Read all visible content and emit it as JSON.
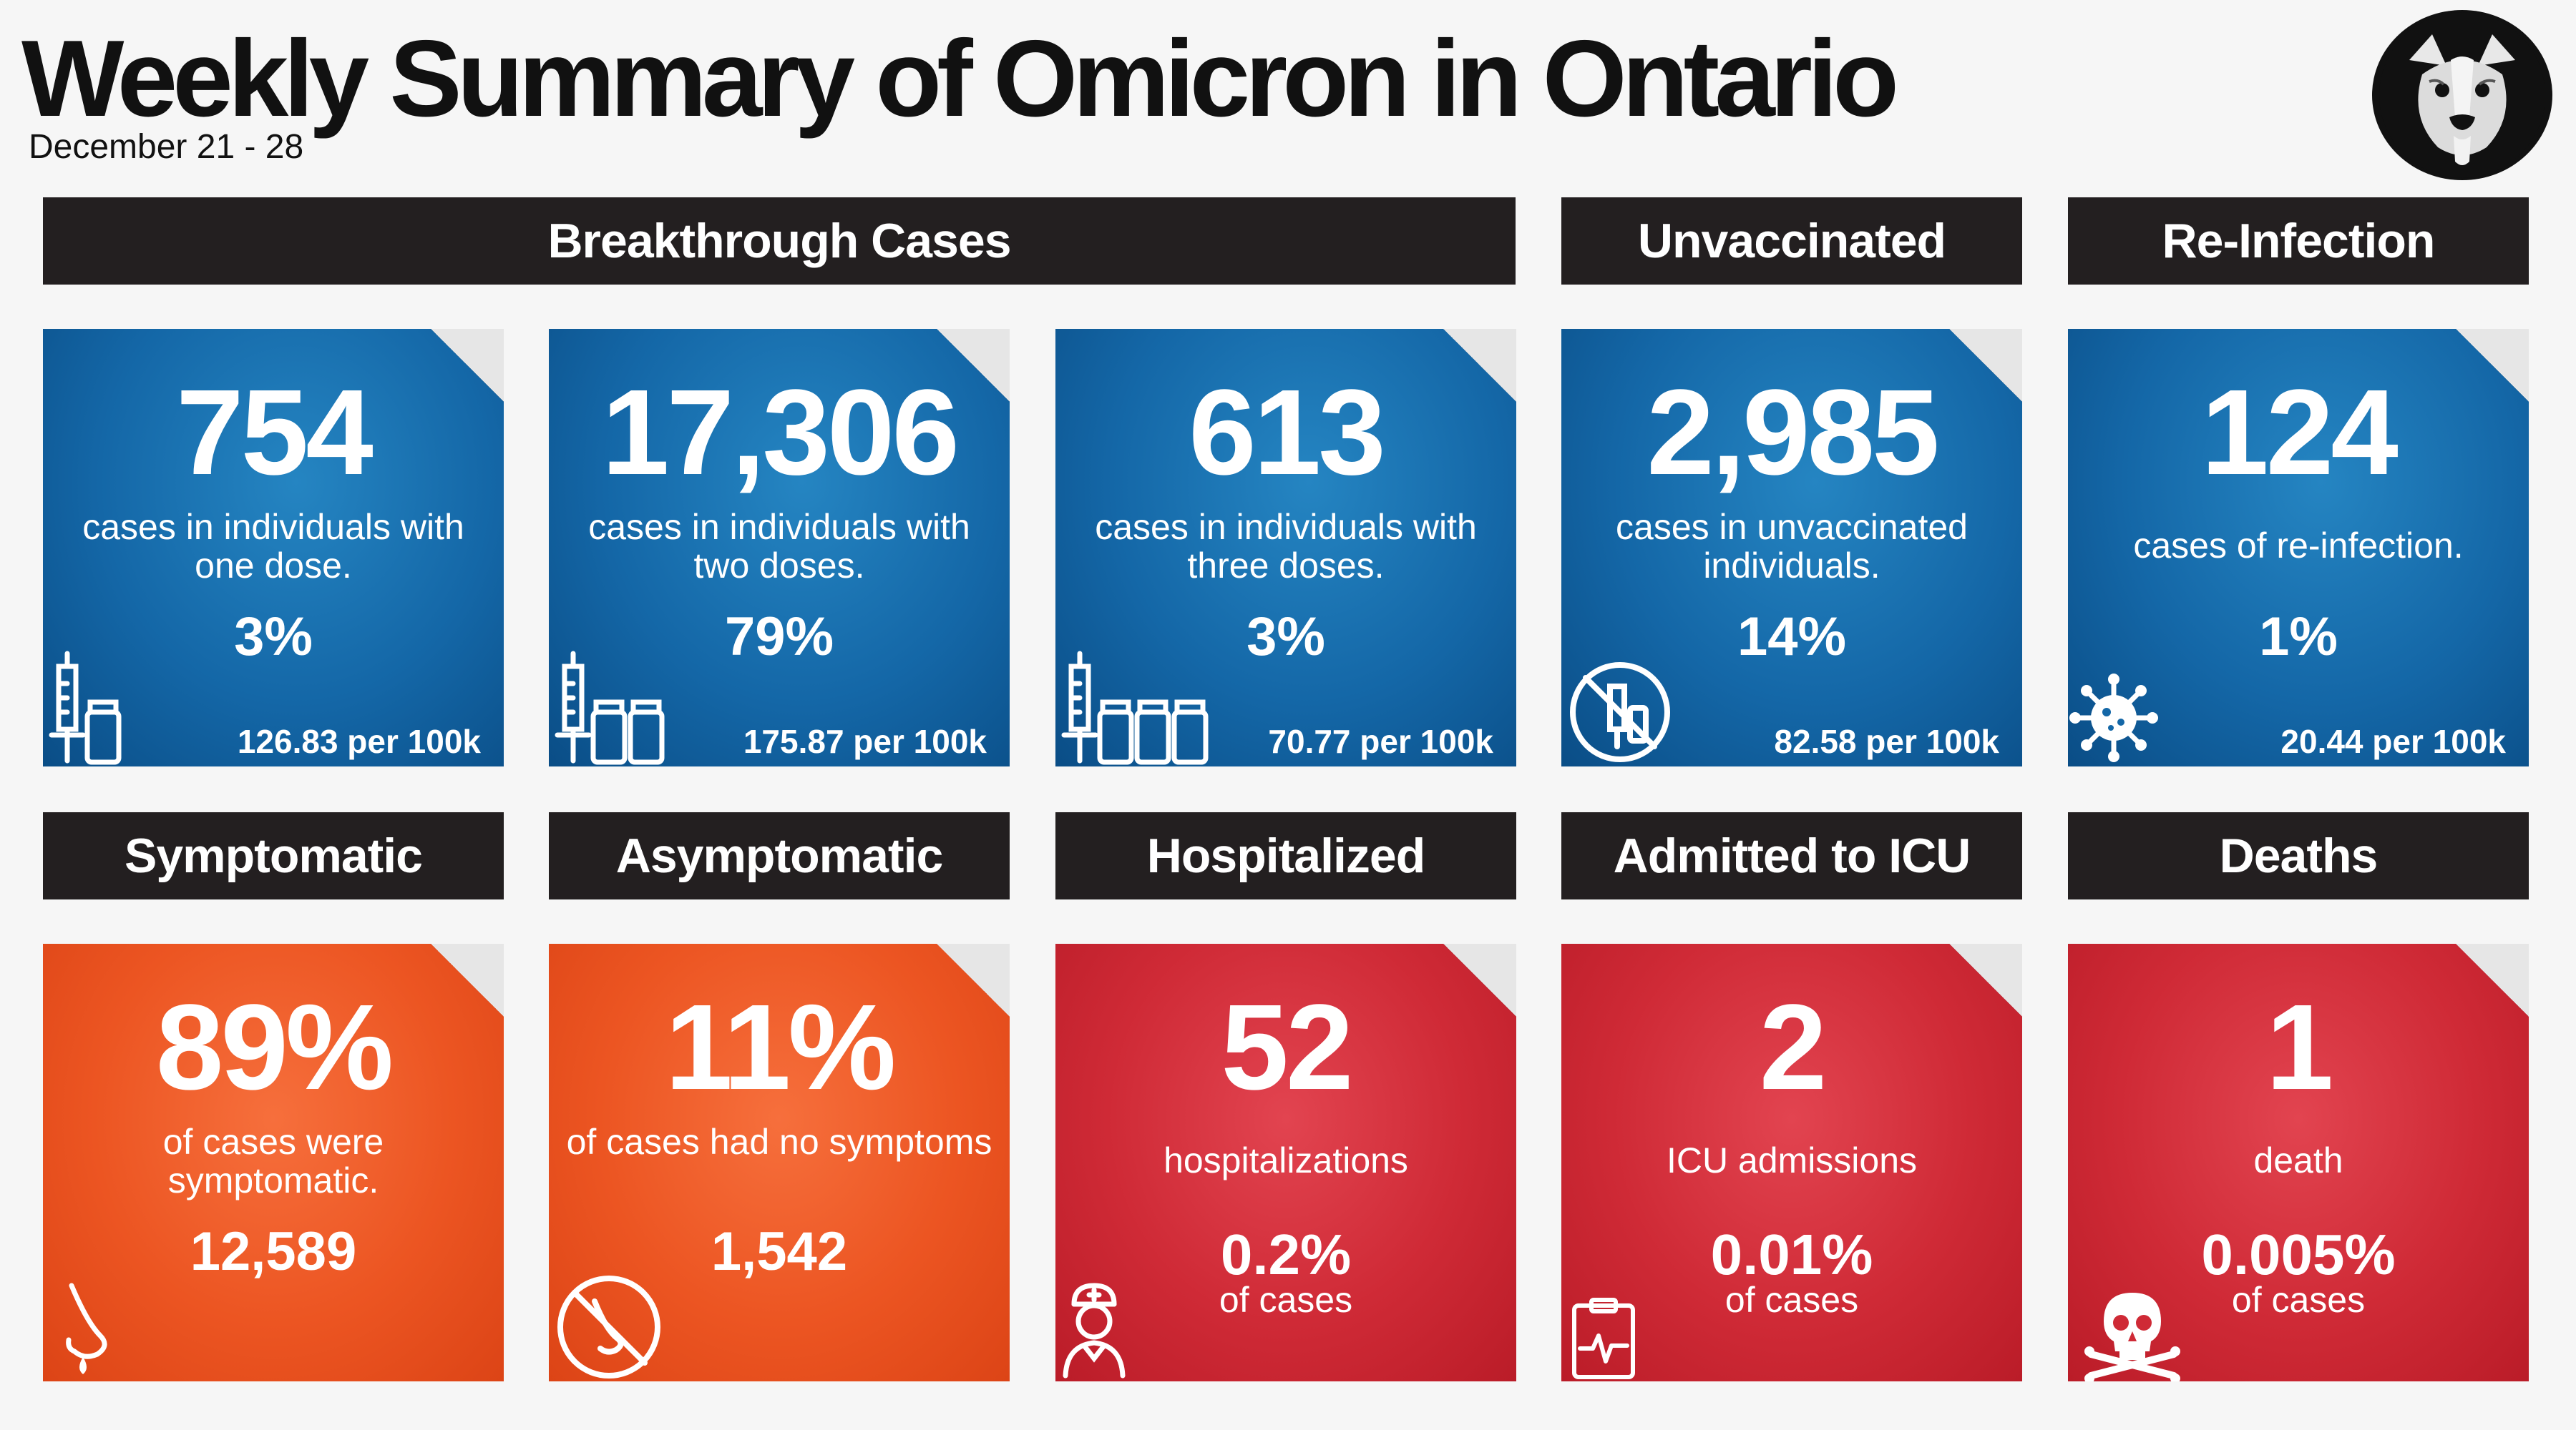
{
  "title": "Weekly Summary of Omicron in Ontario",
  "subtitle": "December 21 - 28",
  "headers": {
    "breakthrough": "Breakthrough Cases",
    "unvaccinated": "Unvaccinated",
    "reinfection": "Re-Infection",
    "symptomatic": "Symptomatic",
    "asymptomatic": "Asymptomatic",
    "hospitalized": "Hospitalized",
    "icu": "Admitted to ICU",
    "deaths": "Deaths"
  },
  "tiles": {
    "one_dose": {
      "value": "754",
      "desc": "cases in individuals with one dose.",
      "percent": "3%",
      "rate": "126.83 per 100k",
      "icon": "vaccine-one-dose-icon"
    },
    "two_doses": {
      "value": "17,306",
      "desc": "cases in individuals with two doses.",
      "percent": "79%",
      "rate": "175.87 per 100k",
      "icon": "vaccine-two-doses-icon"
    },
    "three_doses": {
      "value": "613",
      "desc": "cases in individuals with three doses.",
      "percent": "3%",
      "rate": "70.77 per 100k",
      "icon": "vaccine-three-doses-icon"
    },
    "unvaccinated": {
      "value": "2,985",
      "desc": "cases in unvaccinated individuals.",
      "percent": "14%",
      "rate": "82.58 per 100k",
      "icon": "no-vaccine-icon"
    },
    "reinfection": {
      "value": "124",
      "desc": "cases of re-infection.",
      "percent": "1%",
      "rate": "20.44 per 100k",
      "icon": "virus-icon"
    },
    "symptomatic": {
      "value": "89%",
      "desc": "of cases were symptomatic.",
      "count": "12,589",
      "icon": "runny-nose-icon"
    },
    "asymptomatic": {
      "value": "11%",
      "desc": "of cases had no symptoms",
      "count": "1,542",
      "icon": "no-symptoms-icon"
    },
    "hospitalized": {
      "value": "52",
      "desc": "hospitalizations",
      "percent": "0.2%",
      "suffix": "of cases",
      "icon": "nurse-icon"
    },
    "icu": {
      "value": "2",
      "desc": "ICU admissions",
      "percent": "0.01%",
      "suffix": "of cases",
      "icon": "medical-chart-icon"
    },
    "deaths": {
      "value": "1",
      "desc": "death",
      "percent": "0.005%",
      "suffix": "of cases",
      "icon": "skull-crossbones-icon"
    }
  },
  "colors": {
    "header_bg": "#231f20",
    "blue": "#1467a7",
    "orange": "#ec5522",
    "red": "#cf2a36",
    "fold": "#e6e6e6"
  }
}
